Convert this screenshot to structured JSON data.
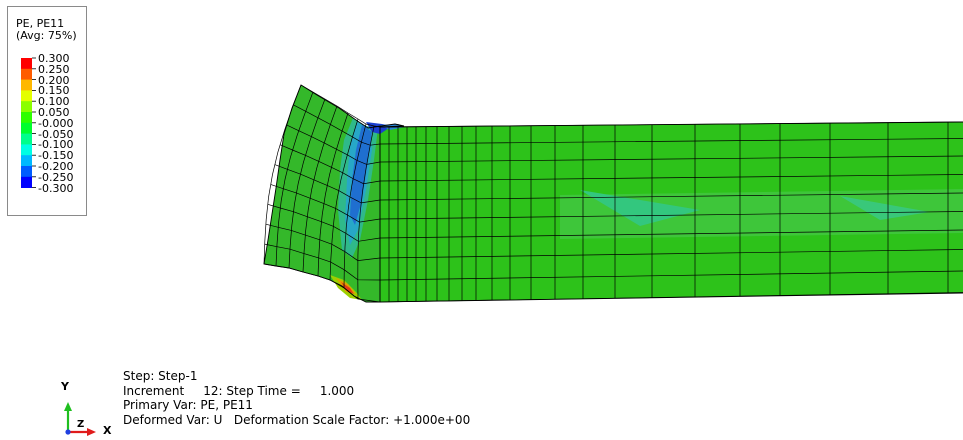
{
  "legend": {
    "title_line1": "PE, PE11",
    "title_line2": "(Avg: 75%)",
    "values": [
      "0.300",
      "0.250",
      "0.200",
      "0.150",
      "0.100",
      "0.050",
      "-0.000",
      "-0.050",
      "-0.100",
      "-0.150",
      "-0.200",
      "-0.250",
      "-0.300"
    ],
    "colors": [
      "#ff0000",
      "#ff5c00",
      "#ffb800",
      "#e4ff00",
      "#8bff00",
      "#2eff00",
      "#00ff2e",
      "#00ff8b",
      "#00ffe4",
      "#00b9ff",
      "#005cff",
      "#0000ff"
    ]
  },
  "mesh_colors": {
    "main_green": "#2dc21a",
    "light_green": "#3ec63a",
    "left_green": "#34b82a",
    "teal": "#2fb98a",
    "cyan": "#27a7c7",
    "blue": "#1f6fd0",
    "deep_blue": "#1b3fcf",
    "orange": "#e0a000",
    "red": "#e43b14",
    "yellowgreen": "#9cd000",
    "edge": "#000000"
  },
  "step_info": {
    "line1": "Step: Step-1",
    "line2": "Increment     12: Step Time =     1.000",
    "line3": "Primary Var: PE, PE11",
    "line4": "Deformed Var: U   Deformation Scale Factor: +1.000e+00"
  },
  "triad": {
    "y_label": "Y",
    "z_label": "Z",
    "x_label": "X",
    "y_color": "#1fbf1f",
    "x_color": "#e01b1b",
    "z_color": "#1f3fe0"
  }
}
